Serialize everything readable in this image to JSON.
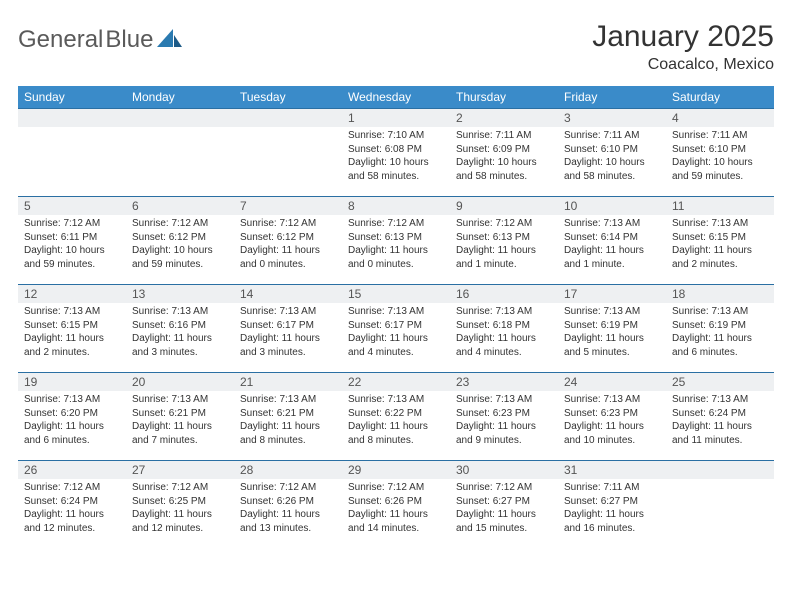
{
  "header": {
    "logo_general": "General",
    "logo_blue": "Blue",
    "month_title": "January 2025",
    "location": "Coacalco, Mexico"
  },
  "colors": {
    "header_bg": "#3a8bc9",
    "header_text": "#ffffff",
    "row_divider": "#2a6fa3",
    "daynum_bg": "#eef0f2",
    "text": "#333333",
    "logo_gray": "#5a5a5a",
    "logo_blue": "#2a7ab0"
  },
  "weekdays": [
    "Sunday",
    "Monday",
    "Tuesday",
    "Wednesday",
    "Thursday",
    "Friday",
    "Saturday"
  ],
  "weeks": [
    [
      {
        "day": "",
        "lines": []
      },
      {
        "day": "",
        "lines": []
      },
      {
        "day": "",
        "lines": []
      },
      {
        "day": "1",
        "lines": [
          "Sunrise: 7:10 AM",
          "Sunset: 6:08 PM",
          "Daylight: 10 hours",
          "and 58 minutes."
        ]
      },
      {
        "day": "2",
        "lines": [
          "Sunrise: 7:11 AM",
          "Sunset: 6:09 PM",
          "Daylight: 10 hours",
          "and 58 minutes."
        ]
      },
      {
        "day": "3",
        "lines": [
          "Sunrise: 7:11 AM",
          "Sunset: 6:10 PM",
          "Daylight: 10 hours",
          "and 58 minutes."
        ]
      },
      {
        "day": "4",
        "lines": [
          "Sunrise: 7:11 AM",
          "Sunset: 6:10 PM",
          "Daylight: 10 hours",
          "and 59 minutes."
        ]
      }
    ],
    [
      {
        "day": "5",
        "lines": [
          "Sunrise: 7:12 AM",
          "Sunset: 6:11 PM",
          "Daylight: 10 hours",
          "and 59 minutes."
        ]
      },
      {
        "day": "6",
        "lines": [
          "Sunrise: 7:12 AM",
          "Sunset: 6:12 PM",
          "Daylight: 10 hours",
          "and 59 minutes."
        ]
      },
      {
        "day": "7",
        "lines": [
          "Sunrise: 7:12 AM",
          "Sunset: 6:12 PM",
          "Daylight: 11 hours",
          "and 0 minutes."
        ]
      },
      {
        "day": "8",
        "lines": [
          "Sunrise: 7:12 AM",
          "Sunset: 6:13 PM",
          "Daylight: 11 hours",
          "and 0 minutes."
        ]
      },
      {
        "day": "9",
        "lines": [
          "Sunrise: 7:12 AM",
          "Sunset: 6:13 PM",
          "Daylight: 11 hours",
          "and 1 minute."
        ]
      },
      {
        "day": "10",
        "lines": [
          "Sunrise: 7:13 AM",
          "Sunset: 6:14 PM",
          "Daylight: 11 hours",
          "and 1 minute."
        ]
      },
      {
        "day": "11",
        "lines": [
          "Sunrise: 7:13 AM",
          "Sunset: 6:15 PM",
          "Daylight: 11 hours",
          "and 2 minutes."
        ]
      }
    ],
    [
      {
        "day": "12",
        "lines": [
          "Sunrise: 7:13 AM",
          "Sunset: 6:15 PM",
          "Daylight: 11 hours",
          "and 2 minutes."
        ]
      },
      {
        "day": "13",
        "lines": [
          "Sunrise: 7:13 AM",
          "Sunset: 6:16 PM",
          "Daylight: 11 hours",
          "and 3 minutes."
        ]
      },
      {
        "day": "14",
        "lines": [
          "Sunrise: 7:13 AM",
          "Sunset: 6:17 PM",
          "Daylight: 11 hours",
          "and 3 minutes."
        ]
      },
      {
        "day": "15",
        "lines": [
          "Sunrise: 7:13 AM",
          "Sunset: 6:17 PM",
          "Daylight: 11 hours",
          "and 4 minutes."
        ]
      },
      {
        "day": "16",
        "lines": [
          "Sunrise: 7:13 AM",
          "Sunset: 6:18 PM",
          "Daylight: 11 hours",
          "and 4 minutes."
        ]
      },
      {
        "day": "17",
        "lines": [
          "Sunrise: 7:13 AM",
          "Sunset: 6:19 PM",
          "Daylight: 11 hours",
          "and 5 minutes."
        ]
      },
      {
        "day": "18",
        "lines": [
          "Sunrise: 7:13 AM",
          "Sunset: 6:19 PM",
          "Daylight: 11 hours",
          "and 6 minutes."
        ]
      }
    ],
    [
      {
        "day": "19",
        "lines": [
          "Sunrise: 7:13 AM",
          "Sunset: 6:20 PM",
          "Daylight: 11 hours",
          "and 6 minutes."
        ]
      },
      {
        "day": "20",
        "lines": [
          "Sunrise: 7:13 AM",
          "Sunset: 6:21 PM",
          "Daylight: 11 hours",
          "and 7 minutes."
        ]
      },
      {
        "day": "21",
        "lines": [
          "Sunrise: 7:13 AM",
          "Sunset: 6:21 PM",
          "Daylight: 11 hours",
          "and 8 minutes."
        ]
      },
      {
        "day": "22",
        "lines": [
          "Sunrise: 7:13 AM",
          "Sunset: 6:22 PM",
          "Daylight: 11 hours",
          "and 8 minutes."
        ]
      },
      {
        "day": "23",
        "lines": [
          "Sunrise: 7:13 AM",
          "Sunset: 6:23 PM",
          "Daylight: 11 hours",
          "and 9 minutes."
        ]
      },
      {
        "day": "24",
        "lines": [
          "Sunrise: 7:13 AM",
          "Sunset: 6:23 PM",
          "Daylight: 11 hours",
          "and 10 minutes."
        ]
      },
      {
        "day": "25",
        "lines": [
          "Sunrise: 7:13 AM",
          "Sunset: 6:24 PM",
          "Daylight: 11 hours",
          "and 11 minutes."
        ]
      }
    ],
    [
      {
        "day": "26",
        "lines": [
          "Sunrise: 7:12 AM",
          "Sunset: 6:24 PM",
          "Daylight: 11 hours",
          "and 12 minutes."
        ]
      },
      {
        "day": "27",
        "lines": [
          "Sunrise: 7:12 AM",
          "Sunset: 6:25 PM",
          "Daylight: 11 hours",
          "and 12 minutes."
        ]
      },
      {
        "day": "28",
        "lines": [
          "Sunrise: 7:12 AM",
          "Sunset: 6:26 PM",
          "Daylight: 11 hours",
          "and 13 minutes."
        ]
      },
      {
        "day": "29",
        "lines": [
          "Sunrise: 7:12 AM",
          "Sunset: 6:26 PM",
          "Daylight: 11 hours",
          "and 14 minutes."
        ]
      },
      {
        "day": "30",
        "lines": [
          "Sunrise: 7:12 AM",
          "Sunset: 6:27 PM",
          "Daylight: 11 hours",
          "and 15 minutes."
        ]
      },
      {
        "day": "31",
        "lines": [
          "Sunrise: 7:11 AM",
          "Sunset: 6:27 PM",
          "Daylight: 11 hours",
          "and 16 minutes."
        ]
      },
      {
        "day": "",
        "lines": []
      }
    ]
  ]
}
